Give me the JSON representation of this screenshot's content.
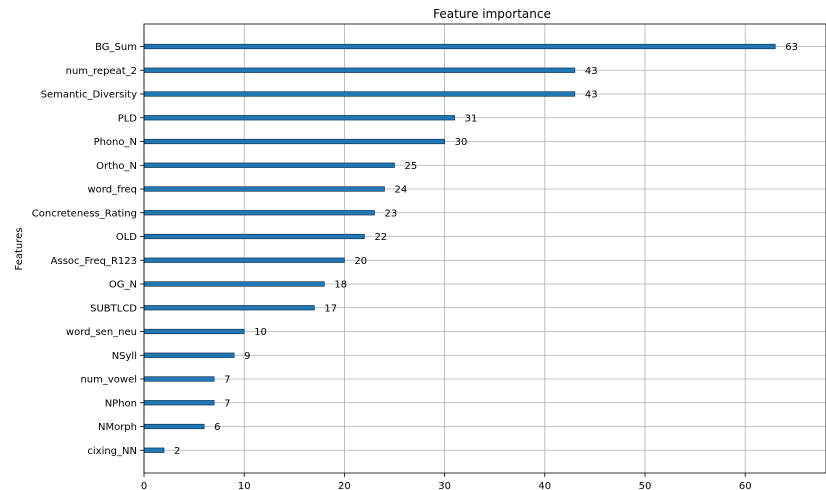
{
  "chart_data": {
    "type": "bar",
    "orientation": "horizontal",
    "title": "Feature importance",
    "xlabel": "",
    "ylabel": "Features",
    "xlim": [
      0,
      68
    ],
    "xticks": [
      0,
      10,
      20,
      30,
      40,
      50,
      60
    ],
    "grid": true,
    "categories": [
      "BG_Sum",
      "num_repeat_2",
      "Semantic_Diversity",
      "PLD",
      "Phono_N",
      "Ortho_N",
      "word_freq",
      "Concreteness_Rating",
      "OLD",
      "Assoc_Freq_R123",
      "OG_N",
      "SUBTLCD",
      "word_sen_neu",
      "NSyll",
      "num_vowel",
      "NPhon",
      "NMorph",
      "cixing_NN"
    ],
    "values": [
      63,
      43,
      43,
      31,
      30,
      25,
      24,
      23,
      22,
      20,
      18,
      17,
      10,
      9,
      7,
      7,
      6,
      2
    ],
    "colors": {
      "bar": "#1f77b4",
      "grid": "#b0b0b0",
      "axis": "#000000"
    }
  }
}
